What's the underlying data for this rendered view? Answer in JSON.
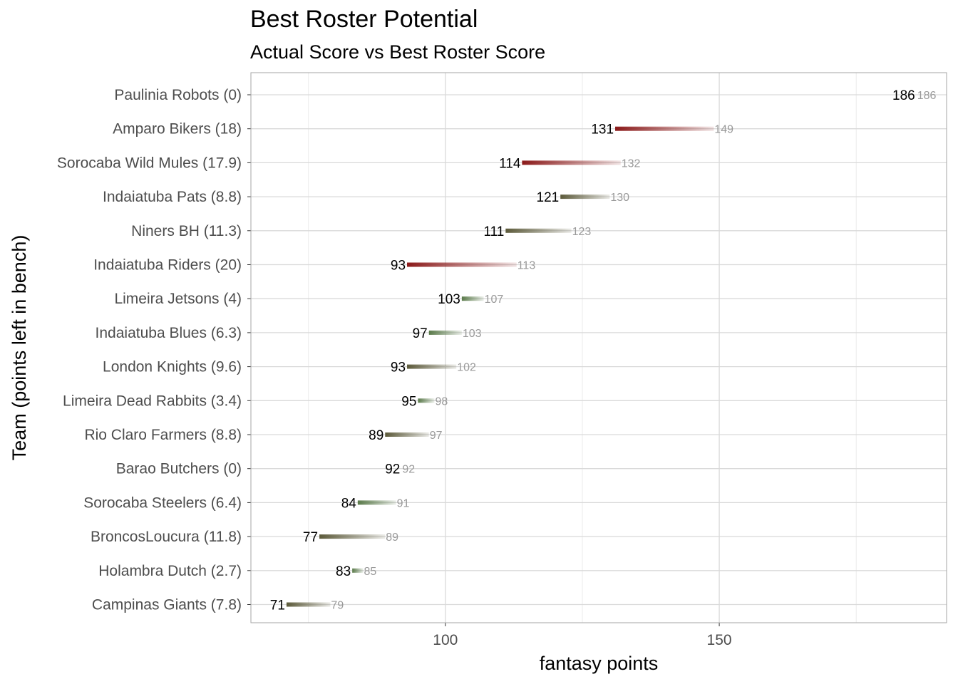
{
  "chart_data": {
    "type": "dumbbell",
    "title": "Best Roster Potential",
    "subtitle": "Actual Score vs Best Roster Score",
    "xlabel": "fantasy points",
    "ylabel": "Team (points left in bench)",
    "xlim": [
      64.5,
      191.5
    ],
    "x_ticks": [
      100,
      150
    ],
    "minor_grid": [
      75,
      125,
      175
    ],
    "grid": true,
    "colors": {
      "high_bench": "#8b1a1a",
      "low_bench": "#5c5a3a",
      "small_gap": "#5a7a4a",
      "actual_label": "#000000",
      "best_label": "#999999",
      "grid": "#d9d9d9",
      "panel_border": "#a6a6a6"
    },
    "teams": [
      {
        "label": "Paulinia Robots (0)",
        "actual": 186,
        "best": 186,
        "tone": "low_bench"
      },
      {
        "label": "Amparo Bikers (18)",
        "actual": 131,
        "best": 149,
        "tone": "high_bench"
      },
      {
        "label": "Sorocaba Wild Mules (17.9)",
        "actual": 114,
        "best": 132,
        "tone": "high_bench"
      },
      {
        "label": "Indaiatuba Pats (8.8)",
        "actual": 121,
        "best": 130,
        "tone": "low_bench"
      },
      {
        "label": "Niners BH (11.3)",
        "actual": 111,
        "best": 123,
        "tone": "low_bench"
      },
      {
        "label": "Indaiatuba Riders (20)",
        "actual": 93,
        "best": 113,
        "tone": "high_bench"
      },
      {
        "label": "Limeira Jetsons (4)",
        "actual": 103,
        "best": 107,
        "tone": "small_gap"
      },
      {
        "label": "Indaiatuba Blues (6.3)",
        "actual": 97,
        "best": 103,
        "tone": "small_gap"
      },
      {
        "label": "London Knights (9.6)",
        "actual": 93,
        "best": 102,
        "tone": "low_bench"
      },
      {
        "label": "Limeira Dead Rabbits (3.4)",
        "actual": 95,
        "best": 98,
        "tone": "small_gap"
      },
      {
        "label": "Rio Claro Farmers (8.8)",
        "actual": 89,
        "best": 97,
        "tone": "low_bench"
      },
      {
        "label": "Barao Butchers (0)",
        "actual": 92,
        "best": 92,
        "tone": "low_bench"
      },
      {
        "label": "Sorocaba Steelers (6.4)",
        "actual": 84,
        "best": 91,
        "tone": "small_gap"
      },
      {
        "label": "BroncosLoucura (11.8)",
        "actual": 77,
        "best": 89,
        "tone": "low_bench"
      },
      {
        "label": "Holambra Dutch (2.7)",
        "actual": 83,
        "best": 85,
        "tone": "small_gap"
      },
      {
        "label": "Campinas Giants (7.8)",
        "actual": 71,
        "best": 79,
        "tone": "low_bench"
      }
    ]
  }
}
